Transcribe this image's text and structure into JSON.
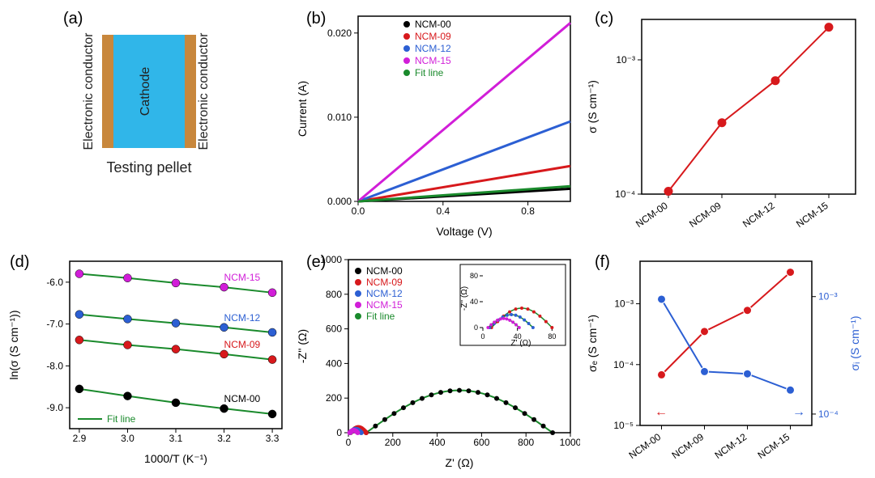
{
  "labels": {
    "a": "(a)",
    "b": "(b)",
    "c": "(c)",
    "d": "(d)",
    "e": "(e)",
    "f": "(f)"
  },
  "panel_a": {
    "caption": "Testing pellet",
    "left_text": "Electronic conductor",
    "right_text": "Electronic conductor",
    "center_text": "Cathode",
    "colors": {
      "electrode": "#c8873c",
      "cathode": "#30b6e9",
      "text": "#222222"
    },
    "fontsize": 16
  },
  "panel_b": {
    "type": "line",
    "xlabel": "Voltage (V)",
    "ylabel": "Current (A)",
    "xlim": [
      0.0,
      1.0
    ],
    "ylim": [
      0.0,
      0.022
    ],
    "xticks": [
      0.0,
      0.4,
      0.8
    ],
    "yticks": [
      0.0,
      0.01,
      0.02
    ],
    "xtick_labels": [
      "0.0",
      "0.4",
      "0.8"
    ],
    "ytick_labels": [
      "0.000",
      "0.010",
      "0.020"
    ],
    "background_color": "#ffffff",
    "axis_color": "#000000",
    "line_width": 3,
    "label_fontsize": 14,
    "tick_fontsize": 12,
    "series": [
      {
        "name": "NCM-00",
        "color": "#000000",
        "x": [
          0.0,
          1.0
        ],
        "y": [
          0.0,
          0.0015
        ]
      },
      {
        "name": "NCM-09",
        "color": "#d7191c",
        "x": [
          0.0,
          1.0
        ],
        "y": [
          0.0,
          0.0042
        ]
      },
      {
        "name": "NCM-12",
        "color": "#2c5fd3",
        "x": [
          0.0,
          1.0
        ],
        "y": [
          0.0,
          0.0095
        ]
      },
      {
        "name": "NCM-15",
        "color": "#d11ed8",
        "x": [
          0.0,
          1.0
        ],
        "y": [
          0.0,
          0.0212
        ]
      },
      {
        "name": "Fit line",
        "color": "#1a8a2c",
        "x": [
          0.0,
          1.0
        ],
        "y": [
          0.0,
          0.0018
        ]
      }
    ],
    "legend_fontsize": 12
  },
  "panel_c": {
    "type": "line",
    "xlabel": "",
    "ylabel": "σ (S cm⁻¹)",
    "xcats": [
      "NCM-00",
      "NCM-09",
      "NCM-12",
      "NCM-15"
    ],
    "yscale": "log",
    "ylim": [
      0.0001,
      0.002
    ],
    "yticks": [
      0.0001,
      0.001
    ],
    "ytick_labels": [
      "10⁻⁴",
      "10⁻³"
    ],
    "color": "#d7191c",
    "marker": "circle",
    "marker_fill": "#d7191c",
    "marker_stroke": "#d7191c",
    "values": [
      0.000105,
      0.00034,
      0.0007,
      0.00175
    ],
    "line_width": 2,
    "marker_size": 5,
    "label_fontsize": 14,
    "tick_fontsize": 12,
    "background_color": "#ffffff",
    "axis_color": "#000000"
  },
  "panel_d": {
    "type": "line_with_markers",
    "xlabel": "1000/T (K⁻¹)",
    "ylabel": "ln(σ (S cm⁻¹))",
    "xlim": [
      2.88,
      3.32
    ],
    "ylim": [
      -9.5,
      -5.5
    ],
    "xticks": [
      2.9,
      3.0,
      3.1,
      3.2,
      3.3
    ],
    "yticks": [
      -9.0,
      -8.0,
      -7.0,
      -6.0
    ],
    "xtick_labels": [
      "2.9",
      "3.0",
      "3.1",
      "3.2",
      "3.3"
    ],
    "ytick_labels": [
      "-9.0",
      "-8.0",
      "-7.0",
      "-6.0"
    ],
    "fit_color": "#1a8a2c",
    "fit_label": "Fit line",
    "line_width": 2,
    "marker_size": 5,
    "label_fontsize": 14,
    "tick_fontsize": 12,
    "series": [
      {
        "name": "NCM-15",
        "color": "#d11ed8",
        "x": [
          2.9,
          3.0,
          3.1,
          3.2,
          3.3
        ],
        "y": [
          -5.8,
          -5.9,
          -6.02,
          -6.12,
          -6.25
        ]
      },
      {
        "name": "NCM-12",
        "color": "#2c5fd3",
        "x": [
          2.9,
          3.0,
          3.1,
          3.2,
          3.3
        ],
        "y": [
          -6.77,
          -6.88,
          -6.98,
          -7.08,
          -7.2
        ]
      },
      {
        "name": "NCM-09",
        "color": "#d7191c",
        "x": [
          2.9,
          3.0,
          3.1,
          3.2,
          3.3
        ],
        "y": [
          -7.38,
          -7.5,
          -7.6,
          -7.72,
          -7.85
        ]
      },
      {
        "name": "NCM-00",
        "color": "#000000",
        "x": [
          2.9,
          3.0,
          3.1,
          3.2,
          3.3
        ],
        "y": [
          -8.55,
          -8.72,
          -8.88,
          -9.02,
          -9.15
        ]
      }
    ],
    "background_color": "#ffffff",
    "axis_color": "#000000"
  },
  "panel_e": {
    "type": "nyquist",
    "xlabel": "Z' (Ω)",
    "ylabel": "-Z'' (Ω)",
    "xlim": [
      0,
      1000
    ],
    "ylim": [
      0,
      1000
    ],
    "xticks": [
      0,
      200,
      400,
      600,
      800,
      1000
    ],
    "yticks": [
      0,
      200,
      400,
      600,
      800,
      1000
    ],
    "fit_color": "#1a8a2c",
    "fit_label": "Fit line",
    "line_width": 2,
    "marker_size": 3,
    "series": [
      {
        "name": "NCM-00",
        "color": "#000000",
        "arc": {
          "x0": 80,
          "x1": 920,
          "yamp": 245
        }
      },
      {
        "name": "NCM-09",
        "color": "#d7191c",
        "arc": {
          "x0": 10,
          "x1": 80,
          "yamp": 30
        }
      },
      {
        "name": "NCM-12",
        "color": "#2c5fd3",
        "arc": {
          "x0": 8,
          "x1": 58,
          "yamp": 20
        }
      },
      {
        "name": "NCM-15",
        "color": "#d11ed8",
        "arc": {
          "x0": 6,
          "x1": 42,
          "yamp": 14
        }
      }
    ],
    "legend_fontsize": 12,
    "inset": {
      "xlim": [
        0,
        90
      ],
      "ylim": [
        0,
        90
      ],
      "xticks": [
        0,
        40,
        80
      ],
      "yticks": [
        0,
        40,
        80
      ],
      "xlabel": "Z' (Ω)",
      "ylabel": "-Z'' (Ω)",
      "series": [
        {
          "name": "NCM-09",
          "color": "#d7191c",
          "arc": {
            "x0": 10,
            "x1": 80,
            "yamp": 30
          }
        },
        {
          "name": "NCM-12",
          "color": "#2c5fd3",
          "arc": {
            "x0": 8,
            "x1": 58,
            "yamp": 20
          }
        },
        {
          "name": "NCM-15",
          "color": "#d11ed8",
          "arc": {
            "x0": 6,
            "x1": 42,
            "yamp": 14
          }
        }
      ],
      "fit_color": "#1a8a2c"
    },
    "background_color": "#ffffff",
    "axis_color": "#000000"
  },
  "panel_f": {
    "type": "dual_axis",
    "xcats": [
      "NCM-00",
      "NCM-09",
      "NCM-12",
      "NCM-15"
    ],
    "left": {
      "label": "σₑ (S cm⁻¹)",
      "color": "#d7191c",
      "yscale": "log",
      "ylim": [
        1e-05,
        0.005
      ],
      "yticks": [
        1e-05,
        0.0001,
        0.001
      ],
      "ytick_labels": [
        "10⁻⁵",
        "10⁻⁴",
        "10⁻³"
      ],
      "values": [
        6.8e-05,
        0.00035,
        0.00078,
        0.0033
      ],
      "arrow": "←"
    },
    "right": {
      "label": "σᵢ (S cm⁻¹)",
      "color": "#2c5fd3",
      "yscale": "log",
      "ylim": [
        8e-05,
        0.002
      ],
      "yticks": [
        0.0001,
        0.001
      ],
      "ytick_labels": [
        "10⁻⁴",
        "10⁻³"
      ],
      "values": [
        0.00095,
        0.00023,
        0.00022,
        0.00016
      ],
      "arrow": "→"
    },
    "line_width": 2,
    "marker_size": 5,
    "label_fontsize": 14,
    "tick_fontsize": 12,
    "background_color": "#ffffff",
    "axis_color": "#000000"
  }
}
